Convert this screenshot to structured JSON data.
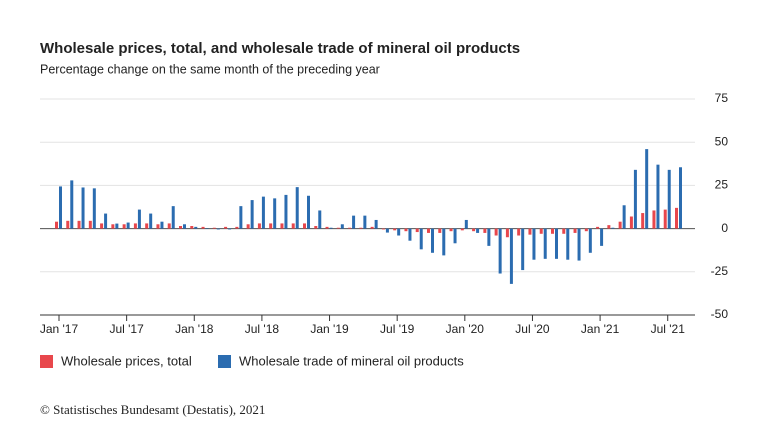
{
  "chart_data": {
    "type": "bar",
    "title": "Wholesale prices, total, and wholesale trade of mineral oil products",
    "subtitle": "Percentage change on the same month of the preceding year",
    "categories": [
      "Jan '17",
      null,
      null,
      null,
      null,
      null,
      "Jul '17",
      null,
      null,
      null,
      null,
      null,
      "Jan '18",
      null,
      null,
      null,
      null,
      null,
      "Jul '18",
      null,
      null,
      null,
      null,
      null,
      "Jan '19",
      null,
      null,
      null,
      null,
      null,
      "Jul '19",
      null,
      null,
      null,
      null,
      null,
      "Jan '20",
      null,
      null,
      null,
      null,
      null,
      "Jul '20",
      null,
      null,
      null,
      null,
      null,
      "Jan '21",
      null,
      null,
      null,
      null,
      null,
      "Jul '21",
      null
    ],
    "series": [
      {
        "name": "Wholesale prices, total",
        "color": "#e8474c",
        "values": [
          4,
          4.5,
          4.5,
          4.5,
          3,
          2.5,
          2.5,
          3,
          3,
          2.5,
          3,
          1.5,
          1.5,
          1,
          0.5,
          1,
          1,
          2.5,
          3,
          3,
          3,
          3,
          3,
          1.5,
          1,
          0.5,
          0.5,
          0.5,
          1,
          -0.5,
          -1,
          -1.5,
          -2,
          -2.5,
          -2.5,
          -1.5,
          -1,
          -1.5,
          -2.5,
          -4,
          -5,
          -4,
          -3.5,
          -3,
          -3,
          -3,
          -2.5,
          -1.5,
          1,
          2,
          4,
          7,
          9,
          10.5,
          11,
          12
        ]
      },
      {
        "name": "Wholesale trade of mineral oil products",
        "color": "#2b6cb0",
        "values": [
          24.4,
          27.9,
          23.8,
          23.3,
          8.7,
          2.9,
          3.5,
          11,
          8.7,
          4,
          13,
          2.5,
          1,
          0.3,
          -0.5,
          -0.5,
          13,
          16.5,
          18.5,
          17.5,
          19.5,
          24,
          19,
          10.5,
          0.5,
          2.5,
          7.5,
          7.5,
          5,
          -2.3,
          -4,
          -7,
          -12,
          -14,
          -15.5,
          -8.5,
          5,
          -2.5,
          -10,
          -26,
          -32,
          -24,
          -18,
          -17.5,
          -17.5,
          -18,
          -18.5,
          -14,
          -10,
          0.5,
          13.5,
          34,
          46,
          37,
          34,
          35.5
        ]
      }
    ],
    "ylim": [
      -50,
      75
    ],
    "yticks": [
      -50,
      -25,
      0,
      25,
      50,
      75
    ],
    "grid": true,
    "source": "© Statistisches Bundesamt (Destatis), 2021"
  }
}
